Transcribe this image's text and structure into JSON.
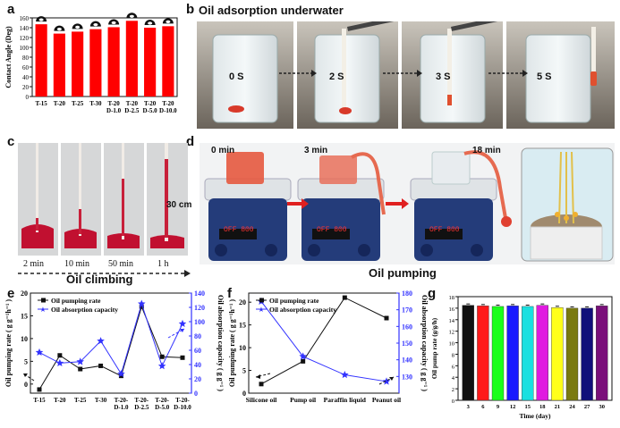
{
  "panels": {
    "a": {
      "label": "a"
    },
    "b": {
      "label": "b",
      "title": "Oil adsorption underwater",
      "times": [
        "0 S",
        "2 S",
        "3 S",
        "5 S"
      ]
    },
    "c": {
      "label": "c",
      "times": [
        "2 min",
        "10 min",
        "50 min",
        "1 h"
      ],
      "height_note": "30 cm",
      "title": "Oil climbing"
    },
    "d": {
      "label": "d",
      "times": [
        "0 min",
        "3 min",
        "18 min"
      ],
      "display": "OFF 800",
      "title": "Oil  pumping"
    },
    "e": {
      "label": "e"
    },
    "f": {
      "label": "f"
    },
    "g": {
      "label": "g"
    }
  },
  "colors": {
    "red_bar": "#ff0000",
    "blue_line": "#3333ff",
    "dark": "#111111",
    "arrow_red": "#e02020"
  },
  "chart_data": [
    {
      "id": "a",
      "type": "bar",
      "categories": [
        "T-15",
        "T-20",
        "T-25",
        "T-30",
        "T-20 D-1.0",
        "T-20 D-2.5",
        "T-20 D-5.0",
        "T-20 D-10.0"
      ],
      "values": [
        147,
        128,
        132,
        137,
        141,
        154,
        140,
        143
      ],
      "ylabel": "Contact Angle (Deg)",
      "ylim": [
        0,
        160
      ],
      "yticks": [
        0,
        20,
        40,
        60,
        80,
        100,
        120,
        140,
        160
      ]
    },
    {
      "id": "e",
      "type": "line",
      "categories": [
        "T-15",
        "T-20",
        "T-25",
        "T-30",
        "T-20- D-1.0",
        "T-20- D-2.5",
        "T-20- D-5.0",
        "T-20- D-10.0"
      ],
      "series": [
        {
          "name": "Oil pumping rate",
          "axis": "left",
          "values": [
            -1.2,
            6.3,
            3.3,
            4.0,
            1.8,
            17.0,
            6.0,
            5.8
          ]
        },
        {
          "name": "Oil absorption capacity",
          "axis": "right",
          "values": [
            57,
            42,
            44,
            73,
            27,
            125,
            38,
            97
          ]
        }
      ],
      "ylabel_left": "Oil pumping rate ( g g⁻¹h⁻¹ )",
      "ylabel_right": "Oil absorption capacity ( g g⁻¹ )",
      "ylim_left": [
        -2,
        20
      ],
      "yticks_left": [
        0,
        5,
        10,
        15,
        20
      ],
      "ylim_right": [
        0,
        140
      ],
      "yticks_right": [
        0,
        20,
        40,
        60,
        80,
        100,
        120,
        140
      ]
    },
    {
      "id": "f",
      "type": "line",
      "categories": [
        "Silicone oil",
        "Pump oil",
        "Paraffin liquid",
        "Peanut oil"
      ],
      "series": [
        {
          "name": "Oil pumping rate",
          "axis": "left",
          "values": [
            2.0,
            7.0,
            21.0,
            16.5
          ]
        },
        {
          "name": "Oil absorption capacity",
          "axis": "right",
          "values": [
            175,
            142,
            131,
            127
          ]
        }
      ],
      "ylabel_left": "Oil pumping rate ( g g⁻¹h⁻¹ )",
      "ylabel_right": "Oil absorption capacity ( g g⁻¹ )",
      "ylim_left": [
        0,
        22
      ],
      "yticks_left": [
        0,
        5,
        10,
        15,
        20
      ],
      "ylim_right": [
        120,
        180
      ],
      "yticks_right": [
        130,
        140,
        150,
        160,
        170,
        180
      ]
    },
    {
      "id": "g",
      "type": "bar",
      "categories": [
        "3",
        "6",
        "9",
        "12",
        "15",
        "18",
        "21",
        "24",
        "27",
        "30"
      ],
      "values": [
        16.5,
        16.4,
        16.3,
        16.4,
        16.3,
        16.5,
        16.1,
        16.0,
        16.0,
        16.4
      ],
      "colors": [
        "#111111",
        "#ff1a1a",
        "#1aff1a",
        "#1a1aff",
        "#1ae0e0",
        "#e01ae0",
        "#ffff1a",
        "#7a7a10",
        "#10107a",
        "#7a107a"
      ],
      "xlabel": "Time (day)",
      "ylabel": "Oil pump rate (g/g/h)",
      "ylim": [
        0,
        18
      ],
      "yticks": [
        0,
        2,
        4,
        6,
        8,
        10,
        12,
        14,
        16,
        18
      ]
    }
  ]
}
